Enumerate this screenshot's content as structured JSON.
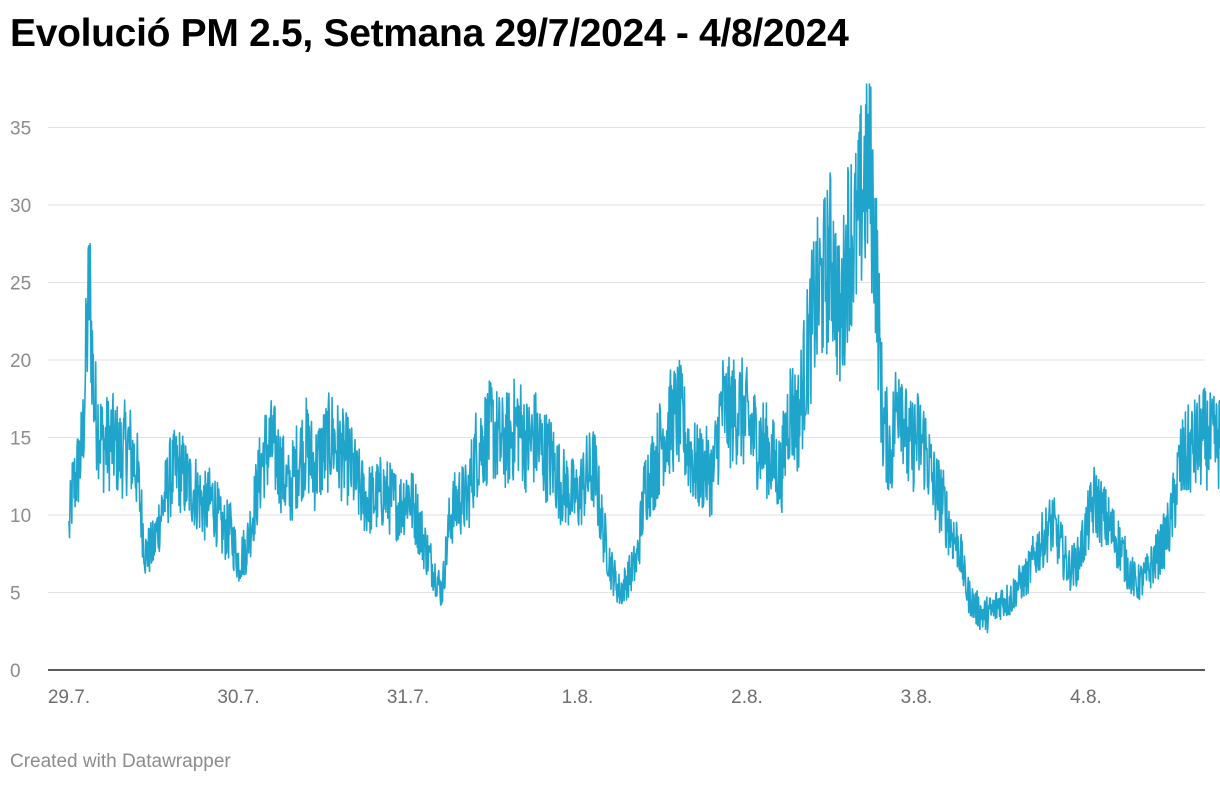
{
  "chart_data": {
    "type": "line",
    "title": "Evolució PM 2.5, Setmana 29/7/2024 - 4/8/2024",
    "xlabel": "",
    "ylabel": "",
    "ylim": [
      0,
      38
    ],
    "y_ticks": [
      0,
      5,
      10,
      15,
      20,
      25,
      30,
      35
    ],
    "x_ticks": [
      "29.7.",
      "30.7.",
      "31.7.",
      "1.8.",
      "2.8.",
      "3.8.",
      "4.8."
    ],
    "x_range_days": [
      0,
      6.6
    ],
    "grid": "horizontal",
    "legend": "none",
    "colors": {
      "line": "#1fa4cc",
      "grid": "#e2e2e2",
      "axis": "#222222"
    },
    "series": [
      {
        "points_day_value": [
          [
            0.0,
            9.0
          ],
          [
            0.02,
            11.5
          ],
          [
            0.05,
            12.8
          ],
          [
            0.08,
            14.5
          ],
          [
            0.1,
            20.0
          ],
          [
            0.12,
            25.0
          ],
          [
            0.15,
            17.0
          ],
          [
            0.2,
            14.5
          ],
          [
            0.25,
            14.8
          ],
          [
            0.3,
            14.0
          ],
          [
            0.35,
            14.5
          ],
          [
            0.4,
            13.0
          ],
          [
            0.45,
            7.5
          ],
          [
            0.5,
            8.0
          ],
          [
            0.55,
            10.5
          ],
          [
            0.6,
            12.5
          ],
          [
            0.65,
            13.0
          ],
          [
            0.7,
            12.0
          ],
          [
            0.75,
            11.5
          ],
          [
            0.8,
            10.5
          ],
          [
            0.85,
            11.0
          ],
          [
            0.9,
            9.0
          ],
          [
            0.95,
            9.0
          ],
          [
            1.0,
            7.0
          ],
          [
            1.05,
            8.0
          ],
          [
            1.1,
            11.0
          ],
          [
            1.15,
            14.0
          ],
          [
            1.2,
            14.5
          ],
          [
            1.25,
            13.0
          ],
          [
            1.3,
            11.5
          ],
          [
            1.35,
            13.5
          ],
          [
            1.4,
            14.5
          ],
          [
            1.45,
            13.0
          ],
          [
            1.5,
            14.0
          ],
          [
            1.55,
            15.0
          ],
          [
            1.6,
            14.0
          ],
          [
            1.65,
            13.5
          ],
          [
            1.7,
            12.0
          ],
          [
            1.75,
            11.0
          ],
          [
            1.8,
            11.0
          ],
          [
            1.85,
            11.5
          ],
          [
            1.9,
            11.0
          ],
          [
            1.95,
            10.5
          ],
          [
            2.0,
            11.5
          ],
          [
            2.05,
            10.0
          ],
          [
            2.1,
            8.0
          ],
          [
            2.15,
            6.5
          ],
          [
            2.2,
            5.0
          ],
          [
            2.25,
            10.0
          ],
          [
            2.3,
            11.0
          ],
          [
            2.35,
            11.0
          ],
          [
            2.4,
            14.0
          ],
          [
            2.45,
            15.0
          ],
          [
            2.5,
            15.5
          ],
          [
            2.55,
            14.5
          ],
          [
            2.6,
            15.0
          ],
          [
            2.65,
            16.0
          ],
          [
            2.7,
            14.5
          ],
          [
            2.75,
            15.0
          ],
          [
            2.8,
            14.0
          ],
          [
            2.85,
            13.5
          ],
          [
            2.9,
            12.0
          ],
          [
            2.95,
            11.5
          ],
          [
            3.0,
            11.0
          ],
          [
            3.05,
            12.5
          ],
          [
            3.1,
            13.0
          ],
          [
            3.15,
            9.0
          ],
          [
            3.2,
            6.5
          ],
          [
            3.25,
            5.0
          ],
          [
            3.3,
            6.0
          ],
          [
            3.35,
            7.0
          ],
          [
            3.4,
            12.0
          ],
          [
            3.45,
            13.0
          ],
          [
            3.5,
            15.0
          ],
          [
            3.55,
            16.0
          ],
          [
            3.6,
            16.5
          ],
          [
            3.65,
            14.5
          ],
          [
            3.7,
            13.0
          ],
          [
            3.75,
            13.0
          ],
          [
            3.8,
            12.5
          ],
          [
            3.85,
            17.0
          ],
          [
            3.9,
            16.5
          ],
          [
            3.95,
            17.0
          ],
          [
            4.0,
            16.0
          ],
          [
            4.05,
            15.0
          ],
          [
            4.1,
            14.5
          ],
          [
            4.15,
            13.5
          ],
          [
            4.2,
            12.5
          ],
          [
            4.25,
            17.0
          ],
          [
            4.3,
            16.0
          ],
          [
            4.35,
            20.0
          ],
          [
            4.4,
            23.5
          ],
          [
            4.45,
            25.0
          ],
          [
            4.5,
            27.0
          ],
          [
            4.55,
            22.0
          ],
          [
            4.6,
            28.0
          ],
          [
            4.65,
            28.0
          ],
          [
            4.68,
            31.0
          ],
          [
            4.72,
            33.0
          ],
          [
            4.76,
            27.0
          ],
          [
            4.8,
            16.0
          ],
          [
            4.85,
            14.0
          ],
          [
            4.9,
            19.0
          ],
          [
            4.95,
            14.0
          ],
          [
            5.0,
            15.0
          ],
          [
            5.05,
            14.5
          ],
          [
            5.1,
            12.0
          ],
          [
            5.15,
            11.0
          ],
          [
            5.2,
            9.0
          ],
          [
            5.25,
            8.0
          ],
          [
            5.3,
            5.0
          ],
          [
            5.35,
            4.0
          ],
          [
            5.4,
            3.5
          ],
          [
            5.45,
            3.8
          ],
          [
            5.5,
            4.5
          ],
          [
            5.55,
            4.5
          ],
          [
            5.6,
            5.5
          ],
          [
            5.65,
            6.0
          ],
          [
            5.7,
            7.5
          ],
          [
            5.75,
            8.5
          ],
          [
            5.8,
            9.5
          ],
          [
            5.85,
            8.0
          ],
          [
            5.9,
            6.5
          ],
          [
            5.95,
            7.0
          ],
          [
            6.0,
            9.0
          ],
          [
            6.05,
            11.0
          ],
          [
            6.1,
            10.0
          ],
          [
            6.15,
            9.0
          ],
          [
            6.2,
            8.0
          ],
          [
            6.25,
            6.5
          ],
          [
            6.3,
            5.5
          ],
          [
            6.35,
            6.0
          ],
          [
            6.4,
            7.0
          ],
          [
            6.45,
            8.0
          ],
          [
            6.5,
            9.5
          ],
          [
            6.55,
            13.0
          ],
          [
            6.6,
            14.0
          ],
          [
            6.65,
            14.5
          ],
          [
            6.7,
            15.0
          ],
          [
            6.75,
            14.5
          ],
          [
            6.8,
            15.0
          ],
          [
            6.85,
            13.0
          ],
          [
            6.9,
            12.5
          ],
          [
            6.95,
            14.0
          ],
          [
            6.98,
            16.0
          ],
          [
            7.02,
            15.0
          ],
          [
            7.05,
            17.0
          ],
          [
            7.08,
            14.0
          ],
          [
            7.1,
            12.0
          ],
          [
            7.12,
            11.5
          ],
          [
            7.15,
            13.0
          ],
          [
            7.18,
            14.5
          ]
        ]
      }
    ]
  },
  "footer": {
    "credit": "Created with Datawrapper"
  }
}
